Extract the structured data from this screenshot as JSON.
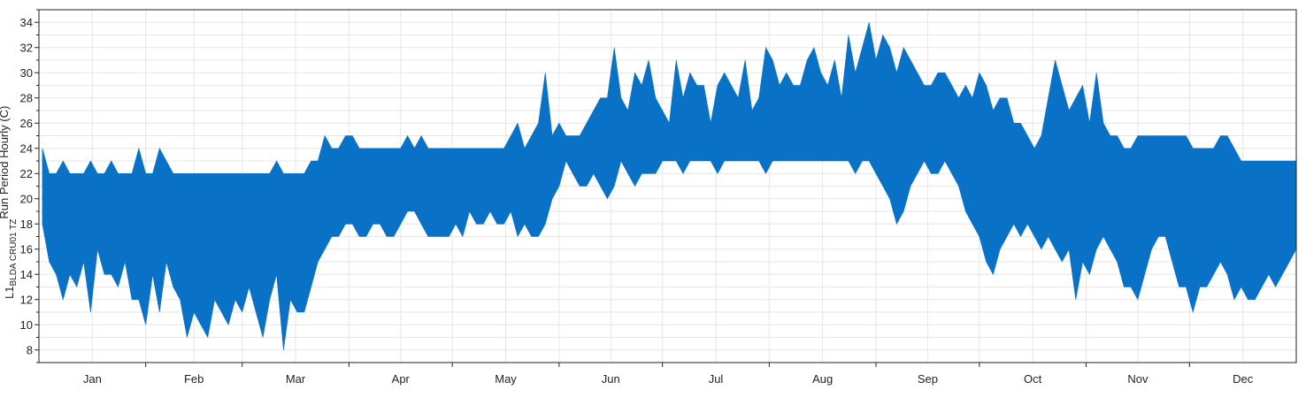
{
  "chart_data": {
    "type": "area",
    "title": "",
    "ylabel": {
      "prefix": "L1",
      "subscript": "BLDA CRU01 TZ",
      "superscript": "Run Period Hourly (C)"
    },
    "xlabel": "",
    "ylim": [
      7,
      35
    ],
    "yticks": [
      8,
      10,
      12,
      14,
      16,
      18,
      20,
      22,
      24,
      26,
      28,
      30,
      32,
      34
    ],
    "grid": true,
    "legend": "none",
    "color": "#0a72c6",
    "categories": [
      "Jan",
      "Feb",
      "Mar",
      "Apr",
      "May",
      "Jun",
      "Jul",
      "Aug",
      "Sep",
      "Oct",
      "Nov",
      "Dec"
    ],
    "series": [
      {
        "name": "",
        "x": [
          1,
          3,
          5,
          7,
          9,
          11,
          13,
          15,
          17,
          19,
          21,
          23,
          25,
          27,
          29,
          31,
          33,
          35,
          37,
          39,
          41,
          43,
          45,
          47,
          49,
          51,
          53,
          55,
          57,
          59,
          61,
          63,
          65,
          67,
          69,
          71,
          73,
          75,
          77,
          79,
          81,
          83,
          85,
          87,
          89,
          91,
          93,
          95,
          97,
          99,
          101,
          103,
          105,
          107,
          109,
          111,
          113,
          115,
          117,
          119,
          121,
          123,
          125,
          127,
          129,
          131,
          133,
          135,
          137,
          139,
          141,
          143,
          145,
          147,
          149,
          151,
          153,
          155,
          157,
          159,
          161,
          163,
          165,
          167,
          169,
          171,
          173,
          175,
          177,
          179,
          181,
          183,
          185,
          187,
          189,
          191,
          193,
          195,
          197,
          199,
          201,
          203,
          205,
          207,
          209,
          211,
          213,
          215,
          217,
          219,
          221,
          223,
          225,
          227,
          229,
          231,
          233,
          235,
          237,
          239,
          241,
          243,
          245,
          247,
          249,
          251,
          253,
          255,
          257,
          259,
          261,
          263,
          265,
          267,
          269,
          271,
          273,
          275,
          277,
          279,
          281,
          283,
          285,
          287,
          289,
          291,
          293,
          295,
          297,
          299,
          301,
          303,
          305,
          307,
          309,
          311,
          313,
          315,
          317,
          319,
          321,
          323,
          325,
          327,
          329,
          331,
          333,
          335,
          337,
          339,
          341,
          343,
          345,
          347,
          349,
          351,
          353,
          355,
          357,
          359,
          361,
          363,
          365
        ],
        "ymin": [
          18,
          15,
          14,
          12,
          14,
          13,
          15,
          11,
          16,
          14,
          14,
          13,
          15,
          12,
          12,
          10,
          14,
          11,
          15,
          13,
          12,
          9,
          11,
          10,
          9,
          12,
          11,
          10,
          12,
          11,
          13,
          11,
          9,
          12,
          14,
          8,
          12,
          11,
          11,
          13,
          15,
          16,
          17,
          17,
          18,
          18,
          17,
          17,
          18,
          18,
          17,
          17,
          18,
          19,
          19,
          18,
          17,
          17,
          17,
          17,
          18,
          17,
          19,
          18,
          18,
          19,
          18,
          18,
          19,
          17,
          18,
          17,
          17,
          18,
          20,
          21,
          23,
          22,
          21,
          21,
          22,
          21,
          20,
          21,
          23,
          22,
          21,
          22,
          22,
          22,
          23,
          23,
          23,
          22,
          23,
          23,
          23,
          23,
          22,
          23,
          23,
          23,
          23,
          23,
          23,
          22,
          23,
          23,
          23,
          23,
          23,
          23,
          23,
          23,
          23,
          23,
          23,
          23,
          22,
          23,
          23,
          22,
          21,
          20,
          18,
          19,
          21,
          22,
          23,
          22,
          22,
          23,
          22,
          21,
          19,
          18,
          17,
          15,
          14,
          16,
          17,
          18,
          17,
          18,
          17,
          16,
          17,
          16,
          15,
          16,
          12,
          15,
          14,
          16,
          17,
          16,
          15,
          13,
          13,
          12,
          14,
          16,
          17,
          17,
          15,
          13,
          13,
          11,
          13,
          13,
          14,
          15,
          14,
          12,
          13,
          12,
          12,
          13,
          14,
          13,
          14,
          15,
          16
        ],
        "ymax": [
          24,
          22,
          22,
          23,
          22,
          22,
          22,
          23,
          22,
          22,
          23,
          22,
          22,
          22,
          24,
          22,
          22,
          24,
          23,
          22,
          22,
          22,
          22,
          22,
          22,
          22,
          22,
          22,
          22,
          22,
          22,
          22,
          22,
          22,
          23,
          22,
          22,
          22,
          22,
          23,
          23,
          25,
          24,
          24,
          25,
          25,
          24,
          24,
          24,
          24,
          24,
          24,
          24,
          25,
          24,
          25,
          24,
          24,
          24,
          24,
          24,
          24,
          24,
          24,
          24,
          24,
          24,
          24,
          25,
          26,
          24,
          25,
          26,
          30,
          25,
          26,
          25,
          25,
          25,
          26,
          27,
          28,
          28,
          32,
          28,
          27,
          30,
          29,
          31,
          28,
          27,
          26,
          31,
          28,
          30,
          29,
          29,
          26,
          29,
          30,
          29,
          28,
          31,
          27,
          28,
          32,
          31,
          29,
          30,
          29,
          29,
          31,
          32,
          30,
          29,
          31,
          28,
          33,
          30,
          32,
          34,
          31,
          33,
          32,
          30,
          32,
          31,
          30,
          29,
          29,
          30,
          30,
          29,
          28,
          29,
          28,
          30,
          29,
          27,
          28,
          28,
          26,
          26,
          25,
          24,
          25,
          28,
          31,
          29,
          27,
          28,
          29,
          26,
          30,
          26,
          25,
          25,
          24,
          24,
          25,
          25,
          25,
          25,
          25,
          25,
          25,
          25,
          24,
          24,
          24,
          24,
          25,
          25,
          24,
          23,
          23,
          23,
          23,
          23,
          23,
          23,
          23,
          23
        ]
      }
    ]
  }
}
